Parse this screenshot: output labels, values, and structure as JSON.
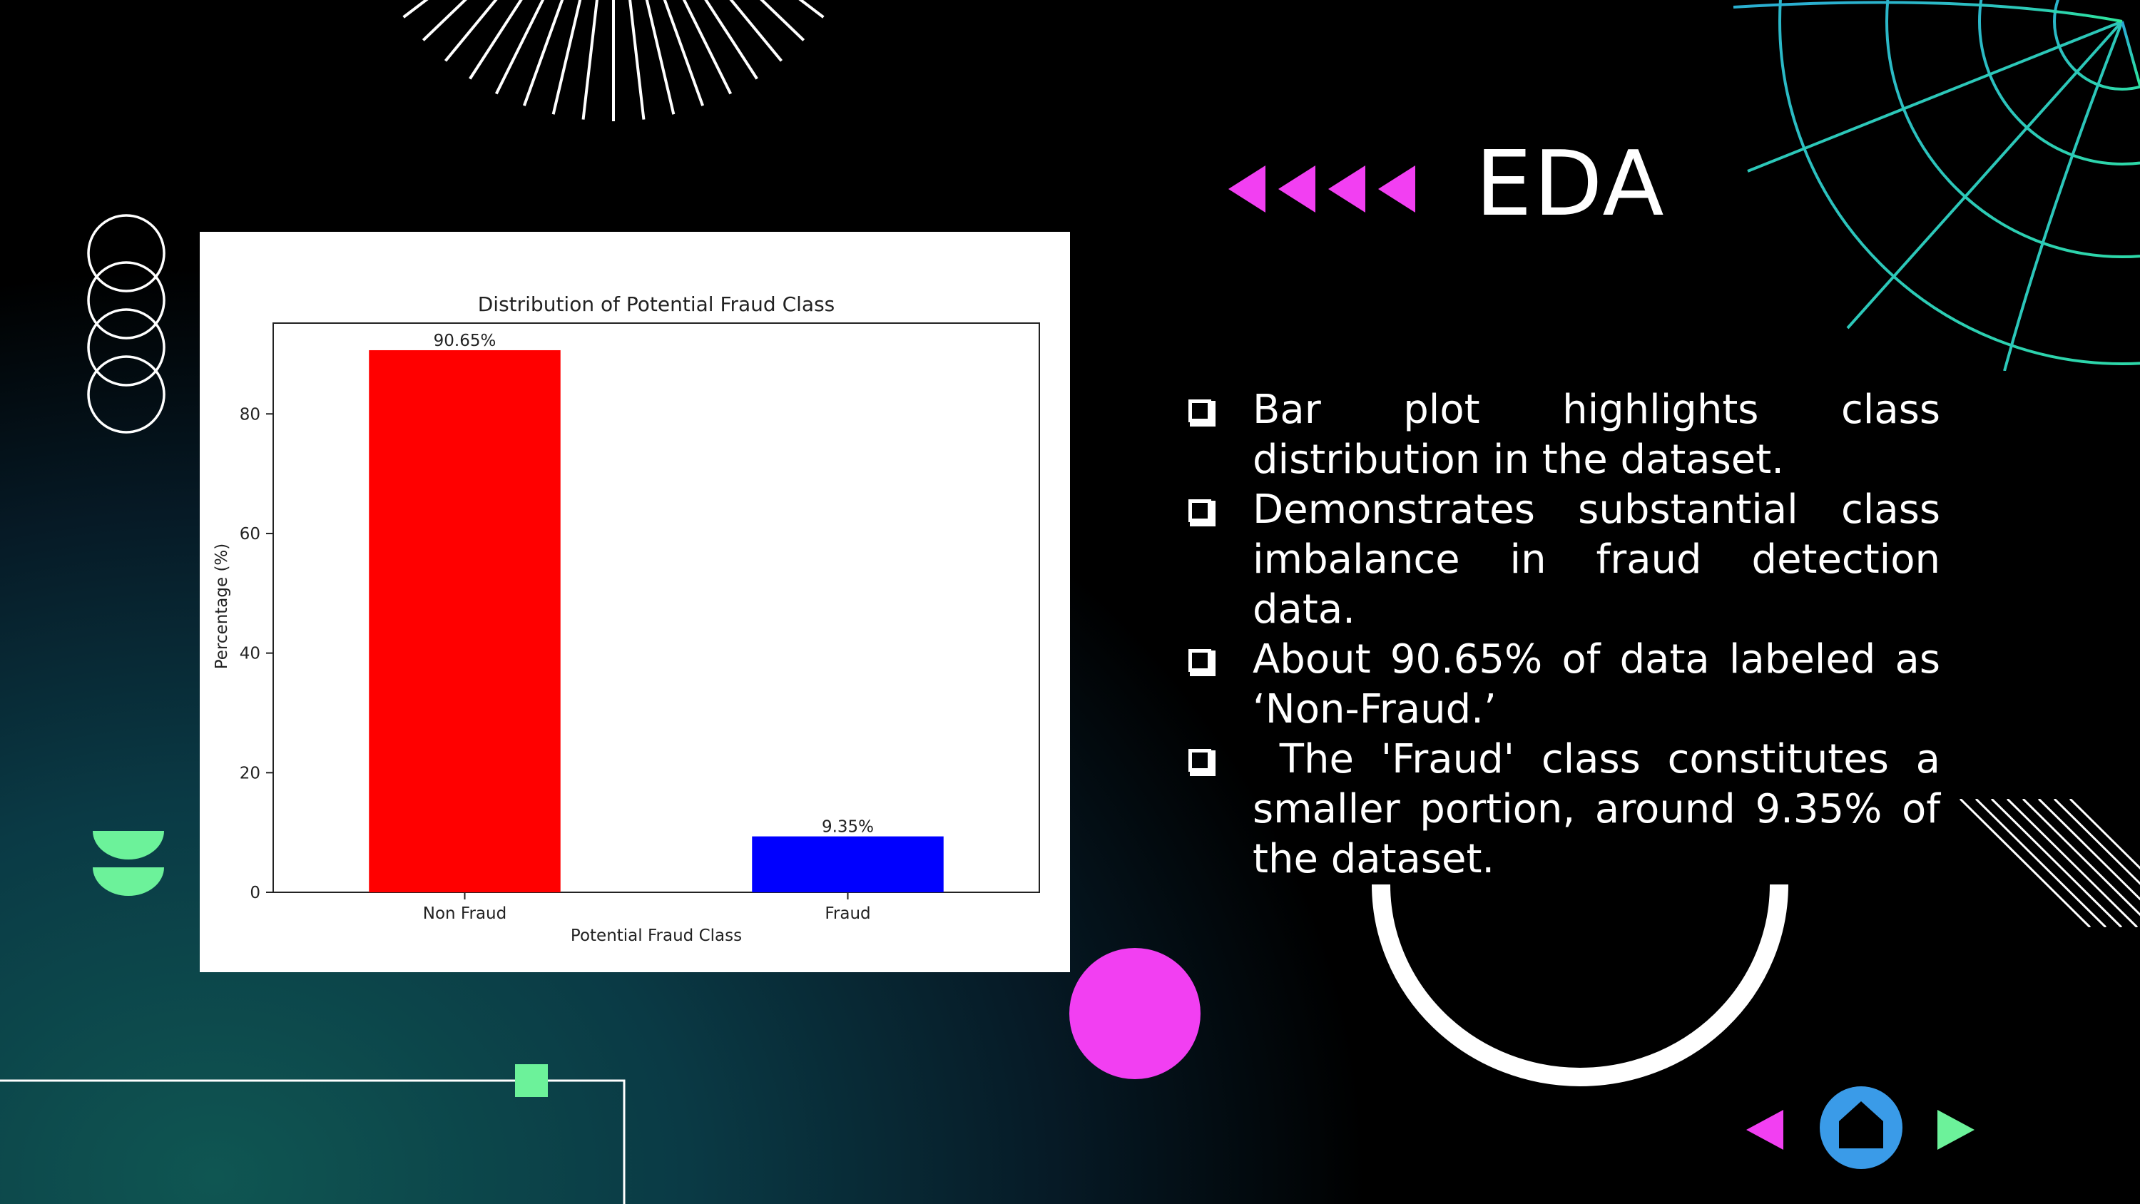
{
  "slide": {
    "title": "EDA"
  },
  "bullets": [
    "Bar plot highlights class distribution in the dataset.",
    "Demonstrates substantial class imbalance in fraud detection data.",
    "About 90.65% of data labeled as ‘Non-Fraud.’",
    " The 'Fraud' class constitutes a smaller portion, around 9.35% of the dataset."
  ],
  "colors": {
    "accent_magenta": "#f23ff2",
    "accent_green": "#6cf29a",
    "accent_blue": "#3a9be8",
    "bar_non_fraud": "#ff0000",
    "bar_fraud": "#0000ff"
  },
  "nav": {
    "prev_icon": "triangle-left-icon",
    "home_icon": "home-icon",
    "next_icon": "triangle-right-icon"
  },
  "chart_data": {
    "type": "bar",
    "title": "Distribution of Potential Fraud Class",
    "xlabel": "Potential Fraud Class",
    "ylabel": "Percentage (%)",
    "categories": [
      "Non Fraud",
      "Fraud"
    ],
    "values": [
      90.65,
      9.35
    ],
    "data_labels": [
      "90.65%",
      "9.35%"
    ],
    "ylim": [
      0,
      95.18
    ],
    "yticks": [
      0,
      20,
      40,
      60,
      80
    ],
    "grid": false,
    "legend": "none"
  }
}
